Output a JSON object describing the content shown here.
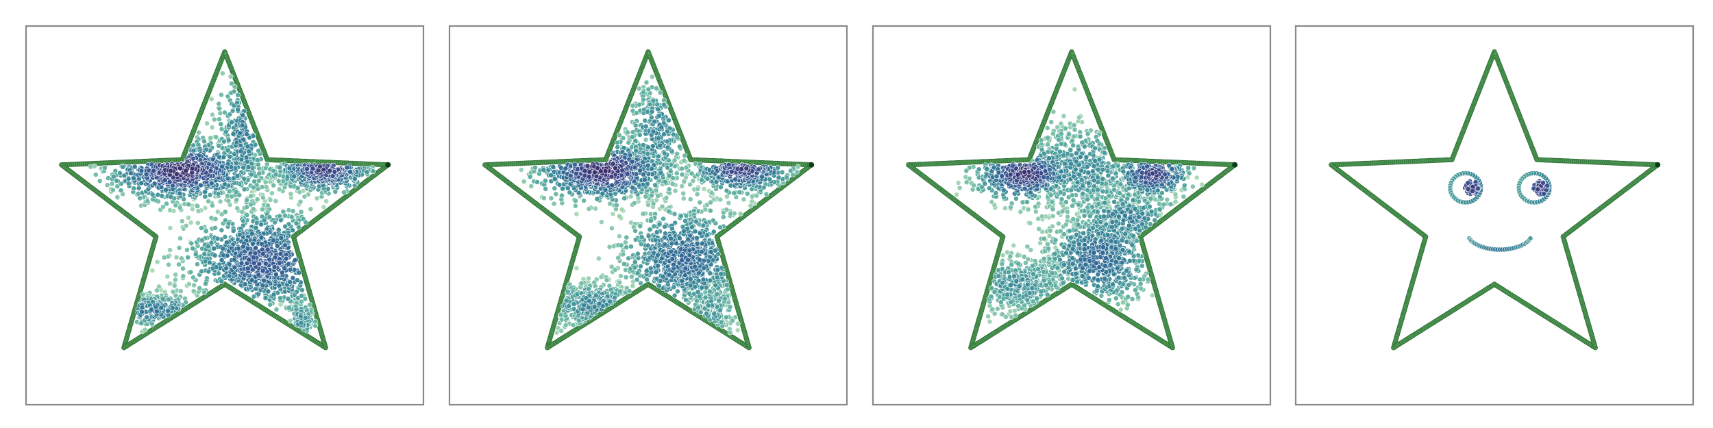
{
  "figure": {
    "background": "#ffffff",
    "panel_border_color": "#888888",
    "outline_color": "#4f9a55",
    "outline_edge_color": "#2f6f36",
    "endpoint_color": "#0b3d17",
    "point_edge_color": "#ffffff",
    "density_colormap": [
      "#a7d8b4",
      "#5fb0a0",
      "#3a8a98",
      "#2f6b94",
      "#3a4f8f",
      "#3a2a6a"
    ]
  },
  "chart_data": [
    {
      "type": "scatter",
      "title": "",
      "xlabel": "",
      "ylabel": "",
      "xlim": [
        -1.1,
        1.1
      ],
      "ylim": [
        -1.1,
        1.1
      ],
      "grid": false,
      "axis_ticks": false,
      "outline": {
        "shape": "star",
        "points": 5,
        "outer_radius": 0.95,
        "inner_radius": 0.4
      },
      "clusters": [
        {
          "cx": -0.24,
          "cy": 0.26,
          "sx": 0.2,
          "sy": 0.09,
          "n": 750,
          "density": 0.95
        },
        {
          "cx": 0.55,
          "cy": 0.27,
          "sx": 0.14,
          "sy": 0.07,
          "n": 420,
          "density": 0.85
        },
        {
          "cx": 0.22,
          "cy": -0.26,
          "sx": 0.22,
          "sy": 0.15,
          "n": 950,
          "density": 0.72
        },
        {
          "cx": 0.1,
          "cy": 0.45,
          "sx": 0.08,
          "sy": 0.22,
          "n": 280,
          "density": 0.45
        },
        {
          "cx": -0.4,
          "cy": -0.55,
          "sx": 0.15,
          "sy": 0.05,
          "n": 170,
          "density": 0.5
        },
        {
          "cx": 0.42,
          "cy": -0.62,
          "sx": 0.05,
          "sy": 0.08,
          "n": 90,
          "density": 0.35
        }
      ]
    },
    {
      "type": "scatter",
      "title": "",
      "xlabel": "",
      "ylabel": "",
      "xlim": [
        -1.1,
        1.1
      ],
      "ylim": [
        -1.1,
        1.1
      ],
      "grid": false,
      "axis_ticks": false,
      "outline": {
        "shape": "star",
        "points": 5,
        "outer_radius": 0.95,
        "inner_radius": 0.4
      },
      "clusters": [
        {
          "cx": -0.25,
          "cy": 0.26,
          "sx": 0.19,
          "sy": 0.09,
          "n": 650,
          "density": 0.95
        },
        {
          "cx": 0.52,
          "cy": 0.27,
          "sx": 0.14,
          "sy": 0.07,
          "n": 380,
          "density": 0.85
        },
        {
          "cx": 0.2,
          "cy": -0.25,
          "sx": 0.18,
          "sy": 0.16,
          "n": 800,
          "density": 0.6
        },
        {
          "cx": 0.05,
          "cy": 0.48,
          "sx": 0.1,
          "sy": 0.18,
          "n": 320,
          "density": 0.4
        },
        {
          "cx": -0.3,
          "cy": -0.52,
          "sx": 0.16,
          "sy": 0.07,
          "n": 320,
          "density": 0.4
        },
        {
          "cx": 0.35,
          "cy": -0.55,
          "sx": 0.08,
          "sy": 0.1,
          "n": 160,
          "density": 0.3
        }
      ]
    },
    {
      "type": "scatter",
      "title": "",
      "xlabel": "",
      "ylabel": "",
      "xlim": [
        -1.1,
        1.1
      ],
      "ylim": [
        -1.1,
        1.1
      ],
      "grid": false,
      "axis_ticks": false,
      "outline": {
        "shape": "star",
        "points": 5,
        "outer_radius": 0.95,
        "inner_radius": 0.4
      },
      "clusters": [
        {
          "cx": -0.26,
          "cy": 0.24,
          "sx": 0.14,
          "sy": 0.08,
          "n": 450,
          "density": 0.92
        },
        {
          "cx": 0.45,
          "cy": 0.24,
          "sx": 0.11,
          "sy": 0.07,
          "n": 300,
          "density": 0.85
        },
        {
          "cx": 0.05,
          "cy": 0.27,
          "sx": 0.2,
          "sy": 0.14,
          "n": 520,
          "density": 0.38
        },
        {
          "cx": 0.15,
          "cy": -0.25,
          "sx": 0.16,
          "sy": 0.14,
          "n": 650,
          "density": 0.6
        },
        {
          "cx": -0.3,
          "cy": -0.4,
          "sx": 0.15,
          "sy": 0.09,
          "n": 420,
          "density": 0.35
        },
        {
          "cx": 0.3,
          "cy": -0.02,
          "sx": 0.16,
          "sy": 0.1,
          "n": 320,
          "density": 0.45
        }
      ]
    },
    {
      "type": "scatter",
      "title": "",
      "xlabel": "",
      "ylabel": "",
      "xlim": [
        -1.1,
        1.1
      ],
      "ylim": [
        -1.1,
        1.1
      ],
      "grid": false,
      "axis_ticks": false,
      "outline": {
        "shape": "star",
        "points": 5,
        "outer_radius": 0.95,
        "inner_radius": 0.4
      },
      "face": {
        "left_eye": {
          "cx": -0.16,
          "cy": 0.16,
          "ring_radius": 0.085,
          "pupil_radius": 0.04
        },
        "right_eye": {
          "cx": 0.22,
          "cy": 0.16,
          "ring_radius": 0.085,
          "pupil_radius": 0.04
        },
        "mouth": {
          "cx": 0.03,
          "cy": -0.1,
          "radius": 0.18,
          "angle_start": 200,
          "angle_end": 340
        }
      }
    }
  ]
}
